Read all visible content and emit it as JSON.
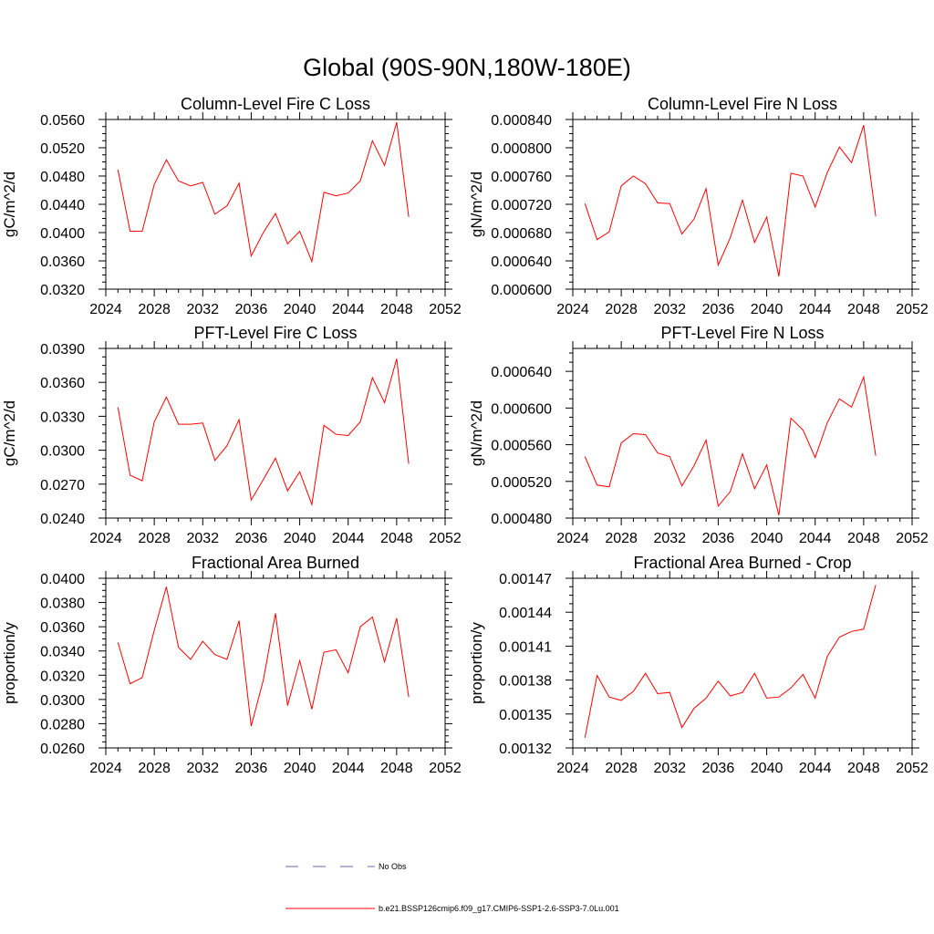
{
  "figure": {
    "title": "Global (90S-90N,180W-180E)"
  },
  "chart_data": [
    {
      "type": "line",
      "title": "Column-Level Fire C Loss",
      "xlabel": "",
      "ylabel": "gC/m^2/d",
      "xlim": [
        2024,
        2052
      ],
      "ylim": [
        0.032,
        0.056
      ],
      "xticks": [
        2024,
        2028,
        2032,
        2036,
        2040,
        2044,
        2048,
        2052
      ],
      "xticklabels": [
        "2024",
        "2028",
        "2032",
        "2036",
        "2040",
        "2044",
        "2048",
        "2052"
      ],
      "yticks": [
        0.032,
        0.036,
        0.04,
        0.044,
        0.048,
        0.052,
        0.056
      ],
      "yticklabels": [
        "0.0320",
        "0.0360",
        "0.0400",
        "0.0440",
        "0.0480",
        "0.0520",
        "0.0560"
      ],
      "series": [
        {
          "name": "b.e21.BSSP126cmip6.f09_g17.CMIP6-SSP1-2.6-SSP3-7.0Lu.001",
          "color": "#ff0000",
          "x": [
            2025,
            2026,
            2027,
            2028,
            2029,
            2030,
            2031,
            2032,
            2033,
            2034,
            2035,
            2036,
            2037,
            2038,
            2039,
            2040,
            2041,
            2042,
            2043,
            2044,
            2045,
            2046,
            2047,
            2048,
            2049
          ],
          "values": [
            0.0489,
            0.0402,
            0.0402,
            0.0468,
            0.0503,
            0.0473,
            0.0466,
            0.0471,
            0.0426,
            0.0438,
            0.047,
            0.0367,
            0.04,
            0.0427,
            0.0384,
            0.0402,
            0.0359,
            0.0457,
            0.0452,
            0.0456,
            0.0473,
            0.053,
            0.0495,
            0.0556,
            0.0422
          ]
        }
      ]
    },
    {
      "type": "line",
      "title": "Column-Level Fire N Loss",
      "xlabel": "",
      "ylabel": "gN/m^2/d",
      "xlim": [
        2024,
        2052
      ],
      "ylim": [
        0.0006,
        0.00084
      ],
      "xticks": [
        2024,
        2028,
        2032,
        2036,
        2040,
        2044,
        2048,
        2052
      ],
      "xticklabels": [
        "2024",
        "2028",
        "2032",
        "2036",
        "2040",
        "2044",
        "2048",
        "2052"
      ],
      "yticks": [
        0.0006,
        0.00064,
        0.00068,
        0.00072,
        0.00076,
        0.0008,
        0.00084
      ],
      "yticklabels": [
        "0.000600",
        "0.000640",
        "0.000680",
        "0.000720",
        "0.000760",
        "0.000800",
        "0.000840"
      ],
      "series": [
        {
          "name": "b.e21.BSSP126cmip6.f09_g17.CMIP6-SSP1-2.6-SSP3-7.0Lu.001",
          "color": "#ff0000",
          "x": [
            2025,
            2026,
            2027,
            2028,
            2029,
            2030,
            2031,
            2032,
            2033,
            2034,
            2035,
            2036,
            2037,
            2038,
            2039,
            2040,
            2041,
            2042,
            2043,
            2044,
            2045,
            2046,
            2047,
            2048,
            2049
          ],
          "values": [
            0.000721,
            0.00067,
            0.000681,
            0.000746,
            0.00076,
            0.000749,
            0.000722,
            0.000721,
            0.000678,
            0.000699,
            0.000742,
            0.000634,
            0.000673,
            0.000726,
            0.000666,
            0.000702,
            0.000618,
            0.000764,
            0.00076,
            0.000716,
            0.000765,
            0.000801,
            0.000779,
            0.000832,
            0.000703
          ]
        }
      ]
    },
    {
      "type": "line",
      "title": "PFT-Level Fire C Loss",
      "xlabel": "",
      "ylabel": "gC/m^2/d",
      "xlim": [
        2024,
        2052
      ],
      "ylim": [
        0.024,
        0.039
      ],
      "xticks": [
        2024,
        2028,
        2032,
        2036,
        2040,
        2044,
        2048,
        2052
      ],
      "xticklabels": [
        "2024",
        "2028",
        "2032",
        "2036",
        "2040",
        "2044",
        "2048",
        "2052"
      ],
      "yticks": [
        0.024,
        0.027,
        0.03,
        0.033,
        0.036,
        0.039
      ],
      "yticklabels": [
        "0.0240",
        "0.0270",
        "0.0300",
        "0.0330",
        "0.0360",
        "0.0390"
      ],
      "series": [
        {
          "name": "b.e21.BSSP126cmip6.f09_g17.CMIP6-SSP1-2.6-SSP3-7.0Lu.001",
          "color": "#ff0000",
          "x": [
            2025,
            2026,
            2027,
            2028,
            2029,
            2030,
            2031,
            2032,
            2033,
            2034,
            2035,
            2036,
            2037,
            2038,
            2039,
            2040,
            2041,
            2042,
            2043,
            2044,
            2045,
            2046,
            2047,
            2048,
            2049
          ],
          "values": [
            0.0338,
            0.0278,
            0.0273,
            0.0325,
            0.0347,
            0.0323,
            0.0323,
            0.0324,
            0.0291,
            0.0304,
            0.0327,
            0.0256,
            0.0274,
            0.0293,
            0.0264,
            0.0281,
            0.0252,
            0.0322,
            0.0314,
            0.0313,
            0.0325,
            0.0364,
            0.0342,
            0.0381,
            0.0288
          ]
        }
      ]
    },
    {
      "type": "line",
      "title": "PFT-Level Fire N Loss",
      "xlabel": "",
      "ylabel": "gN/m^2/d",
      "xlim": [
        2024,
        2052
      ],
      "ylim": [
        0.00048,
        0.000665
      ],
      "xticks": [
        2024,
        2028,
        2032,
        2036,
        2040,
        2044,
        2048,
        2052
      ],
      "xticklabels": [
        "2024",
        "2028",
        "2032",
        "2036",
        "2040",
        "2044",
        "2048",
        "2052"
      ],
      "yticks": [
        0.00048,
        0.00052,
        0.00056,
        0.0006,
        0.00064
      ],
      "yticklabels": [
        "0.000480",
        "0.000520",
        "0.000560",
        "0.000600",
        "0.000640"
      ],
      "series": [
        {
          "name": "b.e21.BSSP126cmip6.f09_g17.CMIP6-SSP1-2.6-SSP3-7.0Lu.001",
          "color": "#ff0000",
          "x": [
            2025,
            2026,
            2027,
            2028,
            2029,
            2030,
            2031,
            2032,
            2033,
            2034,
            2035,
            2036,
            2037,
            2038,
            2039,
            2040,
            2041,
            2042,
            2043,
            2044,
            2045,
            2046,
            2047,
            2048,
            2049
          ],
          "values": [
            0.000547,
            0.000516,
            0.000514,
            0.000562,
            0.000572,
            0.000571,
            0.000551,
            0.000547,
            0.000515,
            0.000537,
            0.000565,
            0.000493,
            0.000509,
            0.00055,
            0.000512,
            0.000538,
            0.000483,
            0.000589,
            0.000576,
            0.000546,
            0.000584,
            0.00061,
            0.000601,
            0.000634,
            0.000548
          ]
        }
      ]
    },
    {
      "type": "line",
      "title": "Fractional Area Burned",
      "xlabel": "",
      "ylabel": "proportion/y",
      "xlim": [
        2024,
        2052
      ],
      "ylim": [
        0.026,
        0.04
      ],
      "xticks": [
        2024,
        2028,
        2032,
        2036,
        2040,
        2044,
        2048,
        2052
      ],
      "xticklabels": [
        "2024",
        "2028",
        "2032",
        "2036",
        "2040",
        "2044",
        "2048",
        "2052"
      ],
      "yticks": [
        0.026,
        0.028,
        0.03,
        0.032,
        0.034,
        0.036,
        0.038,
        0.04
      ],
      "yticklabels": [
        "0.0260",
        "0.0280",
        "0.0300",
        "0.0320",
        "0.0340",
        "0.0360",
        "0.0380",
        "0.0400"
      ],
      "series": [
        {
          "name": "b.e21.BSSP126cmip6.f09_g17.CMIP6-SSP1-2.6-SSP3-7.0Lu.001",
          "color": "#ff0000",
          "x": [
            2025,
            2026,
            2027,
            2028,
            2029,
            2030,
            2031,
            2032,
            2033,
            2034,
            2035,
            2036,
            2037,
            2038,
            2039,
            2040,
            2041,
            2042,
            2043,
            2044,
            2045,
            2046,
            2047,
            2048,
            2049
          ],
          "values": [
            0.0347,
            0.0313,
            0.0318,
            0.0357,
            0.0393,
            0.0343,
            0.0333,
            0.0348,
            0.0337,
            0.0333,
            0.0365,
            0.0278,
            0.0316,
            0.0371,
            0.0295,
            0.0332,
            0.0292,
            0.0339,
            0.0341,
            0.0322,
            0.036,
            0.0368,
            0.0331,
            0.0367,
            0.0302
          ]
        }
      ]
    },
    {
      "type": "line",
      "title": "Fractional Area Burned - Crop",
      "xlabel": "",
      "ylabel": "proportion/y",
      "xlim": [
        2024,
        2052
      ],
      "ylim": [
        0.00132,
        0.00147
      ],
      "xticks": [
        2024,
        2028,
        2032,
        2036,
        2040,
        2044,
        2048,
        2052
      ],
      "xticklabels": [
        "2024",
        "2028",
        "2032",
        "2036",
        "2040",
        "2044",
        "2048",
        "2052"
      ],
      "yticks": [
        0.00132,
        0.00135,
        0.00138,
        0.00141,
        0.00144,
        0.00147
      ],
      "yticklabels": [
        "0.00132",
        "0.00135",
        "0.00138",
        "0.00141",
        "0.00144",
        "0.00147"
      ],
      "series": [
        {
          "name": "b.e21.BSSP126cmip6.f09_g17.CMIP6-SSP1-2.6-SSP3-7.0Lu.001",
          "color": "#ff0000",
          "x": [
            2025,
            2026,
            2027,
            2028,
            2029,
            2030,
            2031,
            2032,
            2033,
            2034,
            2035,
            2036,
            2037,
            2038,
            2039,
            2040,
            2041,
            2042,
            2043,
            2044,
            2045,
            2046,
            2047,
            2048,
            2049
          ],
          "values": [
            0.001329,
            0.001384,
            0.001365,
            0.001362,
            0.00137,
            0.001386,
            0.001368,
            0.001369,
            0.001338,
            0.001355,
            0.001364,
            0.001379,
            0.001366,
            0.001369,
            0.001386,
            0.001364,
            0.001365,
            0.001373,
            0.001385,
            0.001364,
            0.001401,
            0.001418,
            0.001423,
            0.001425,
            0.001464
          ]
        }
      ]
    }
  ],
  "legend": {
    "placement": "bottom-center",
    "entries": [
      {
        "label": "No Obs",
        "color": "#6a6aa8",
        "style": "dashed"
      },
      {
        "label": "b.e21.BSSP126cmip6.f09_g17.CMIP6-SSP1-2.6-SSP3-7.0Lu.001",
        "color": "#ff0000",
        "style": "solid"
      }
    ]
  }
}
